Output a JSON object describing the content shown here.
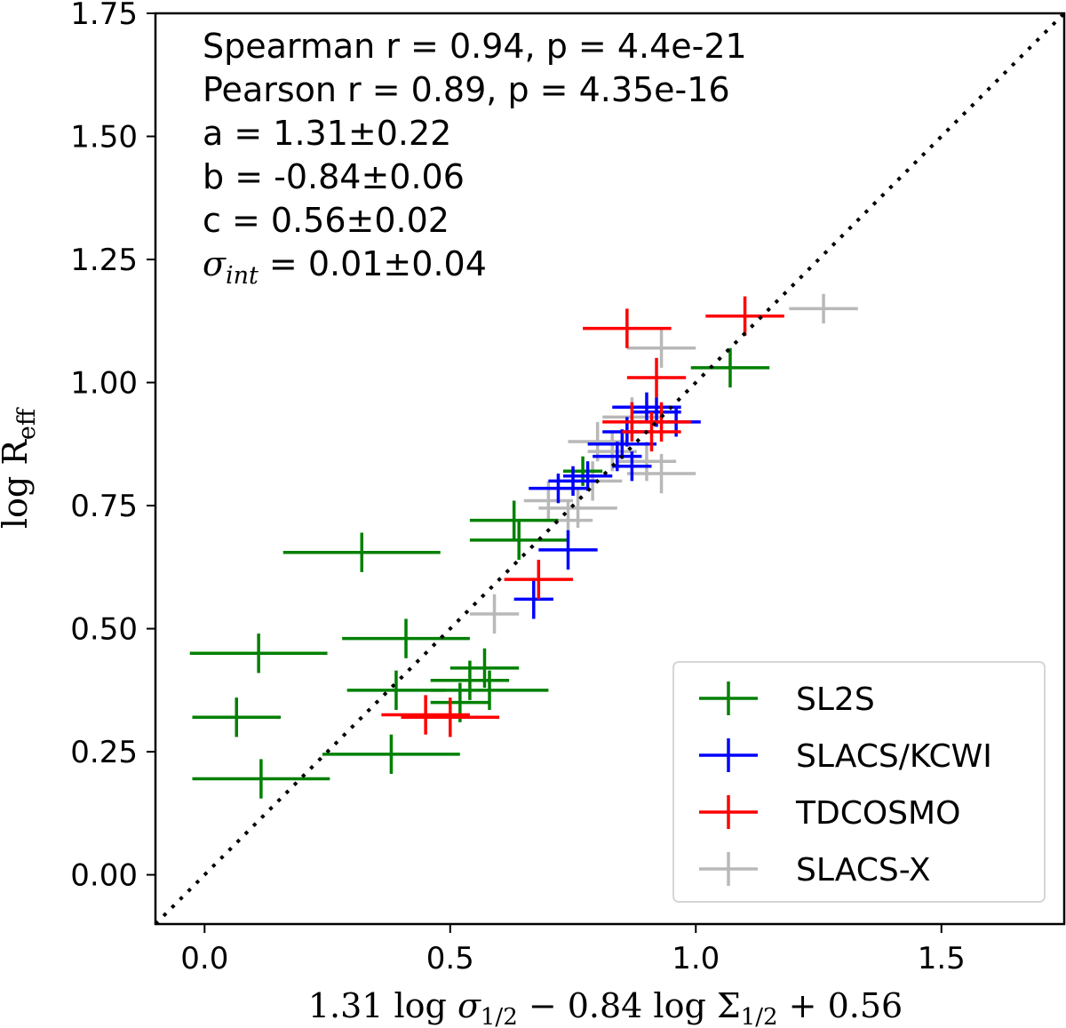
{
  "chart_data": {
    "type": "scatter",
    "xlabel": "1.31 log σ1/2 − 0.84 log  Σ1/2 + 0.56",
    "ylabel": "log Reff",
    "xlim": [
      -0.1,
      1.75
    ],
    "ylim": [
      -0.1,
      1.75
    ],
    "xticks": [
      "0.0",
      "0.5",
      "1.0",
      "1.5"
    ],
    "yticks": [
      "0.00",
      "0.25",
      "0.50",
      "0.75",
      "1.00",
      "1.25",
      "1.50",
      "1.75"
    ],
    "reference_line": "one-to-one (dotted)",
    "annotations": [
      "Spearman r = 0.94, p = 4.4e-21",
      "Pearson r = 0.89, p = 4.35e-16",
      "a = 1.31±0.22",
      "b = -0.84±0.06",
      "c = 0.56±0.02",
      "σint = 0.01±0.04"
    ],
    "legend_position": "lower-right",
    "series": [
      {
        "name": "SL2S",
        "color": "#008000",
        "points": [
          {
            "x": 1.07,
            "y": 1.03,
            "xerr": 0.08,
            "yerr": 0.04
          },
          {
            "x": 0.63,
            "y": 0.72,
            "xerr": 0.09,
            "yerr": 0.04
          },
          {
            "x": 0.64,
            "y": 0.68,
            "xerr": 0.1,
            "yerr": 0.04
          },
          {
            "x": 0.32,
            "y": 0.655,
            "xerr": 0.16,
            "yerr": 0.04
          },
          {
            "x": 0.41,
            "y": 0.48,
            "xerr": 0.13,
            "yerr": 0.04
          },
          {
            "x": 0.11,
            "y": 0.45,
            "xerr": 0.14,
            "yerr": 0.04
          },
          {
            "x": 0.57,
            "y": 0.42,
            "xerr": 0.07,
            "yerr": 0.04
          },
          {
            "x": 0.54,
            "y": 0.395,
            "xerr": 0.08,
            "yerr": 0.04
          },
          {
            "x": 0.39,
            "y": 0.375,
            "xerr": 0.1,
            "yerr": 0.04
          },
          {
            "x": 0.58,
            "y": 0.375,
            "xerr": 0.12,
            "yerr": 0.04
          },
          {
            "x": 0.52,
            "y": 0.35,
            "xerr": 0.06,
            "yerr": 0.04
          },
          {
            "x": 0.065,
            "y": 0.32,
            "xerr": 0.09,
            "yerr": 0.04
          },
          {
            "x": 0.38,
            "y": 0.245,
            "xerr": 0.14,
            "yerr": 0.04
          },
          {
            "x": 0.115,
            "y": 0.195,
            "xerr": 0.14,
            "yerr": 0.04
          },
          {
            "x": 0.77,
            "y": 0.82,
            "xerr": 0.04,
            "yerr": 0.03
          }
        ]
      },
      {
        "name": "SLACS/KCWI",
        "color": "#0000ff",
        "points": [
          {
            "x": 0.9,
            "y": 0.95,
            "xerr": 0.07,
            "yerr": 0.03
          },
          {
            "x": 0.92,
            "y": 0.94,
            "xerr": 0.05,
            "yerr": 0.03
          },
          {
            "x": 0.96,
            "y": 0.92,
            "xerr": 0.05,
            "yerr": 0.03
          },
          {
            "x": 0.86,
            "y": 0.9,
            "xerr": 0.05,
            "yerr": 0.03
          },
          {
            "x": 0.85,
            "y": 0.875,
            "xerr": 0.07,
            "yerr": 0.03
          },
          {
            "x": 0.84,
            "y": 0.85,
            "xerr": 0.05,
            "yerr": 0.03
          },
          {
            "x": 0.87,
            "y": 0.83,
            "xerr": 0.04,
            "yerr": 0.03
          },
          {
            "x": 0.78,
            "y": 0.81,
            "xerr": 0.05,
            "yerr": 0.03
          },
          {
            "x": 0.75,
            "y": 0.8,
            "xerr": 0.05,
            "yerr": 0.03
          },
          {
            "x": 0.72,
            "y": 0.785,
            "xerr": 0.06,
            "yerr": 0.03
          },
          {
            "x": 0.74,
            "y": 0.66,
            "xerr": 0.06,
            "yerr": 0.04
          },
          {
            "x": 0.67,
            "y": 0.56,
            "xerr": 0.04,
            "yerr": 0.04
          }
        ]
      },
      {
        "name": "TDCOSMO",
        "color": "#ff0000",
        "points": [
          {
            "x": 1.1,
            "y": 1.135,
            "xerr": 0.08,
            "yerr": 0.04
          },
          {
            "x": 0.86,
            "y": 1.11,
            "xerr": 0.09,
            "yerr": 0.04
          },
          {
            "x": 0.92,
            "y": 1.01,
            "xerr": 0.06,
            "yerr": 0.04
          },
          {
            "x": 0.93,
            "y": 0.92,
            "xerr": 0.06,
            "yerr": 0.04
          },
          {
            "x": 0.87,
            "y": 0.92,
            "xerr": 0.06,
            "yerr": 0.04
          },
          {
            "x": 0.91,
            "y": 0.9,
            "xerr": 0.06,
            "yerr": 0.04
          },
          {
            "x": 0.68,
            "y": 0.6,
            "xerr": 0.07,
            "yerr": 0.04
          },
          {
            "x": 0.45,
            "y": 0.325,
            "xerr": 0.09,
            "yerr": 0.04
          },
          {
            "x": 0.5,
            "y": 0.32,
            "xerr": 0.1,
            "yerr": 0.04
          }
        ]
      },
      {
        "name": "SLACS-X",
        "color": "#b8b8b8",
        "points": [
          {
            "x": 1.26,
            "y": 1.15,
            "xerr": 0.07,
            "yerr": 0.03
          },
          {
            "x": 0.93,
            "y": 1.07,
            "xerr": 0.07,
            "yerr": 0.04
          },
          {
            "x": 0.87,
            "y": 0.93,
            "xerr": 0.06,
            "yerr": 0.04
          },
          {
            "x": 0.8,
            "y": 0.88,
            "xerr": 0.06,
            "yerr": 0.04
          },
          {
            "x": 0.83,
            "y": 0.86,
            "xerr": 0.05,
            "yerr": 0.04
          },
          {
            "x": 0.9,
            "y": 0.84,
            "xerr": 0.06,
            "yerr": 0.04
          },
          {
            "x": 0.93,
            "y": 0.815,
            "xerr": 0.07,
            "yerr": 0.04
          },
          {
            "x": 0.79,
            "y": 0.8,
            "xerr": 0.06,
            "yerr": 0.04
          },
          {
            "x": 0.7,
            "y": 0.76,
            "xerr": 0.05,
            "yerr": 0.04
          },
          {
            "x": 0.76,
            "y": 0.745,
            "xerr": 0.08,
            "yerr": 0.04
          },
          {
            "x": 0.74,
            "y": 0.72,
            "xerr": 0.05,
            "yerr": 0.04
          },
          {
            "x": 0.59,
            "y": 0.53,
            "xerr": 0.05,
            "yerr": 0.04
          }
        ]
      }
    ]
  }
}
